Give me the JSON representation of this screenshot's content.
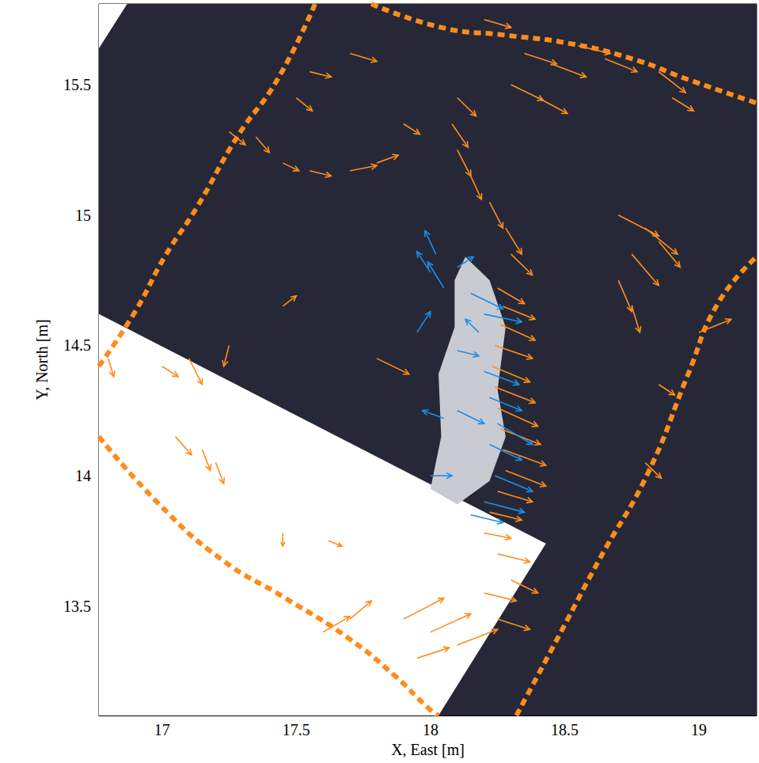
{
  "chart_data": {
    "type": "quiver",
    "x_label": "X, East [m]",
    "y_label": "Y, North [m]",
    "xlim": [
      16.765,
      19.215
    ],
    "ylim": [
      13.08,
      15.81
    ],
    "xticks": [
      17,
      17.5,
      18,
      18.5,
      19
    ],
    "yticks": [
      13.5,
      14,
      14.5,
      15,
      15.5
    ],
    "grid": false,
    "series": [
      {
        "type": "polygon",
        "color": "#262838",
        "values": [
          [
            16.765,
            15.81
          ],
          [
            19.215,
            15.81
          ],
          [
            19.215,
            13.08
          ],
          [
            16.765,
            13.08
          ]
        ]
      },
      {
        "type": "polygon",
        "color": "#ffffff",
        "values": [
          [
            16.765,
            15.81
          ],
          [
            16.87,
            15.81
          ],
          [
            16.765,
            15.64
          ]
        ]
      },
      {
        "type": "polygon",
        "color": "#ffffff",
        "values": [
          [
            16.765,
            14.62
          ],
          [
            18.43,
            13.74
          ],
          [
            18.03,
            13.08
          ],
          [
            16.765,
            13.08
          ]
        ]
      },
      {
        "type": "polygon",
        "color": "#c9cbd2",
        "values": [
          [
            18.13,
            14.84
          ],
          [
            18.22,
            14.75
          ],
          [
            18.28,
            14.57
          ],
          [
            18.25,
            14.33
          ],
          [
            18.28,
            14.15
          ],
          [
            18.22,
            13.98
          ],
          [
            18.1,
            13.89
          ],
          [
            18.0,
            13.95
          ],
          [
            18.04,
            14.15
          ],
          [
            18.03,
            14.39
          ],
          [
            18.09,
            14.57
          ],
          [
            18.09,
            14.75
          ]
        ]
      },
      {
        "type": "line",
        "color": "#ff8c1a",
        "line_style": "dashed",
        "values": [
          [
            16.765,
            14.42
          ],
          [
            16.9,
            14.63
          ],
          [
            17.01,
            14.84
          ],
          [
            17.13,
            15.03
          ],
          [
            17.28,
            15.3
          ],
          [
            17.43,
            15.52
          ],
          [
            17.57,
            15.81
          ]
        ]
      },
      {
        "type": "line",
        "color": "#ff8c1a",
        "line_style": "dashed",
        "values": [
          [
            17.78,
            15.81
          ],
          [
            18.04,
            15.72
          ],
          [
            18.28,
            15.69
          ],
          [
            18.51,
            15.66
          ],
          [
            18.75,
            15.6
          ],
          [
            18.96,
            15.52
          ],
          [
            19.215,
            15.43
          ]
        ]
      },
      {
        "type": "line",
        "color": "#ff8c1a",
        "line_style": "dashed",
        "values": [
          [
            18.32,
            13.08
          ],
          [
            18.46,
            13.35
          ],
          [
            18.63,
            13.68
          ],
          [
            18.81,
            14.01
          ],
          [
            18.96,
            14.39
          ],
          [
            19.07,
            14.66
          ],
          [
            19.215,
            14.84
          ]
        ]
      },
      {
        "type": "line",
        "color": "#ff8c1a",
        "line_style": "dashed",
        "values": [
          [
            16.765,
            14.15
          ],
          [
            16.99,
            13.89
          ],
          [
            17.22,
            13.68
          ],
          [
            17.46,
            13.53
          ],
          [
            17.69,
            13.38
          ],
          [
            17.87,
            13.23
          ],
          [
            17.99,
            13.11
          ],
          [
            18.03,
            13.08
          ]
        ]
      },
      {
        "type": "quiver",
        "color": "#ff8c1a",
        "values": [
          [
            18.25,
            14.72,
            0.1,
            -0.06
          ],
          [
            18.27,
            14.65,
            0.12,
            -0.05
          ],
          [
            18.26,
            14.58,
            0.13,
            -0.06
          ],
          [
            18.24,
            14.5,
            0.14,
            -0.05
          ],
          [
            18.23,
            14.42,
            0.14,
            -0.06
          ],
          [
            18.24,
            14.34,
            0.15,
            -0.06
          ],
          [
            18.25,
            14.26,
            0.15,
            -0.07
          ],
          [
            18.26,
            14.18,
            0.15,
            -0.06
          ],
          [
            18.27,
            14.1,
            0.16,
            -0.06
          ],
          [
            18.28,
            14.02,
            0.15,
            -0.06
          ],
          [
            18.25,
            13.94,
            0.13,
            -0.04
          ],
          [
            18.22,
            13.86,
            0.12,
            -0.03
          ],
          [
            18.2,
            13.78,
            0.1,
            -0.02
          ],
          [
            18.25,
            13.7,
            0.12,
            -0.03
          ],
          [
            18.3,
            14.85,
            0.08,
            -0.08
          ],
          [
            18.28,
            14.95,
            0.06,
            -0.1
          ],
          [
            18.22,
            15.05,
            0.05,
            -0.1
          ],
          [
            18.15,
            15.15,
            0.04,
            -0.09
          ],
          [
            18.1,
            15.25,
            0.05,
            -0.1
          ],
          [
            18.08,
            15.35,
            0.06,
            -0.09
          ],
          [
            18.1,
            15.45,
            0.07,
            -0.07
          ],
          [
            18.35,
            15.62,
            0.12,
            -0.04
          ],
          [
            18.45,
            15.58,
            0.13,
            -0.05
          ],
          [
            18.55,
            15.65,
            0.12,
            -0.03
          ],
          [
            18.65,
            15.6,
            0.12,
            -0.05
          ],
          [
            18.3,
            15.5,
            0.12,
            -0.06
          ],
          [
            18.4,
            15.45,
            0.11,
            -0.06
          ],
          [
            18.2,
            15.75,
            0.1,
            -0.03
          ],
          [
            18.85,
            15.55,
            0.1,
            -0.08
          ],
          [
            18.9,
            15.45,
            0.08,
            -0.05
          ],
          [
            17.25,
            15.32,
            0.06,
            -0.05
          ],
          [
            17.35,
            15.3,
            0.05,
            -0.06
          ],
          [
            17.45,
            15.2,
            0.06,
            -0.03
          ],
          [
            17.55,
            15.17,
            0.08,
            -0.02
          ],
          [
            17.7,
            15.17,
            0.1,
            0.02
          ],
          [
            17.8,
            15.2,
            0.08,
            0.03
          ],
          [
            17.55,
            15.55,
            0.08,
            -0.02
          ],
          [
            17.7,
            15.62,
            0.1,
            -0.03
          ],
          [
            17.5,
            15.45,
            0.06,
            -0.05
          ],
          [
            17.9,
            15.35,
            0.06,
            -0.04
          ],
          [
            17.45,
            14.65,
            0.05,
            0.04
          ],
          [
            17.8,
            14.45,
            0.12,
            -0.06
          ],
          [
            18.7,
            15.0,
            0.15,
            -0.08
          ],
          [
            18.8,
            14.95,
            0.12,
            -0.1
          ],
          [
            18.75,
            14.85,
            0.1,
            -0.12
          ],
          [
            18.85,
            14.9,
            0.08,
            -0.1
          ],
          [
            18.7,
            14.75,
            0.05,
            -0.12
          ],
          [
            18.75,
            14.65,
            0.03,
            -0.1
          ],
          [
            19.0,
            14.55,
            0.12,
            0.05
          ],
          [
            18.85,
            14.35,
            0.06,
            -0.04
          ],
          [
            18.8,
            14.05,
            0.06,
            -0.06
          ],
          [
            17.25,
            14.5,
            -0.02,
            -0.08
          ],
          [
            17.1,
            14.45,
            0.05,
            -0.1
          ],
          [
            17.0,
            14.42,
            0.06,
            -0.04
          ],
          [
            16.8,
            14.45,
            0.02,
            -0.07
          ],
          [
            17.05,
            14.15,
            0.06,
            -0.07
          ],
          [
            17.15,
            14.1,
            0.03,
            -0.08
          ],
          [
            17.2,
            14.05,
            0.03,
            -0.08
          ],
          [
            17.45,
            13.78,
            0.0,
            -0.05
          ],
          [
            17.62,
            13.75,
            0.05,
            -0.02
          ],
          [
            17.9,
            13.45,
            0.15,
            0.08
          ],
          [
            18.0,
            13.4,
            0.15,
            0.07
          ],
          [
            18.1,
            13.35,
            0.15,
            0.06
          ],
          [
            17.95,
            13.3,
            0.12,
            0.04
          ],
          [
            17.6,
            13.4,
            0.1,
            0.06
          ],
          [
            17.7,
            13.45,
            0.08,
            0.07
          ],
          [
            18.2,
            13.55,
            0.12,
            -0.03
          ],
          [
            18.25,
            13.45,
            0.12,
            -0.04
          ],
          [
            18.3,
            13.6,
            0.1,
            -0.05
          ]
        ]
      },
      {
        "type": "quiver",
        "color": "#1e8ee8",
        "values": [
          [
            18.02,
            14.85,
            -0.04,
            0.09
          ],
          [
            18.0,
            14.78,
            -0.05,
            0.08
          ],
          [
            18.05,
            14.72,
            -0.06,
            0.1
          ],
          [
            18.1,
            14.8,
            0.06,
            0.04
          ],
          [
            18.15,
            14.7,
            0.12,
            -0.06
          ],
          [
            18.2,
            14.62,
            0.14,
            -0.03
          ],
          [
            18.18,
            14.55,
            -0.05,
            0.05
          ],
          [
            18.1,
            14.48,
            0.08,
            -0.02
          ],
          [
            18.2,
            14.4,
            0.13,
            -0.05
          ],
          [
            18.22,
            14.3,
            0.12,
            -0.05
          ],
          [
            18.25,
            14.2,
            0.13,
            -0.08
          ],
          [
            18.22,
            14.12,
            0.12,
            -0.06
          ],
          [
            18.24,
            14.0,
            0.14,
            -0.06
          ],
          [
            18.2,
            13.9,
            0.15,
            -0.04
          ],
          [
            18.15,
            13.85,
            0.12,
            -0.03
          ],
          [
            18.0,
            14.0,
            0.08,
            0.0
          ],
          [
            18.05,
            14.22,
            -0.08,
            0.03
          ],
          [
            18.1,
            14.25,
            0.1,
            -0.05
          ],
          [
            17.95,
            14.55,
            0.05,
            0.08
          ]
        ]
      }
    ]
  }
}
